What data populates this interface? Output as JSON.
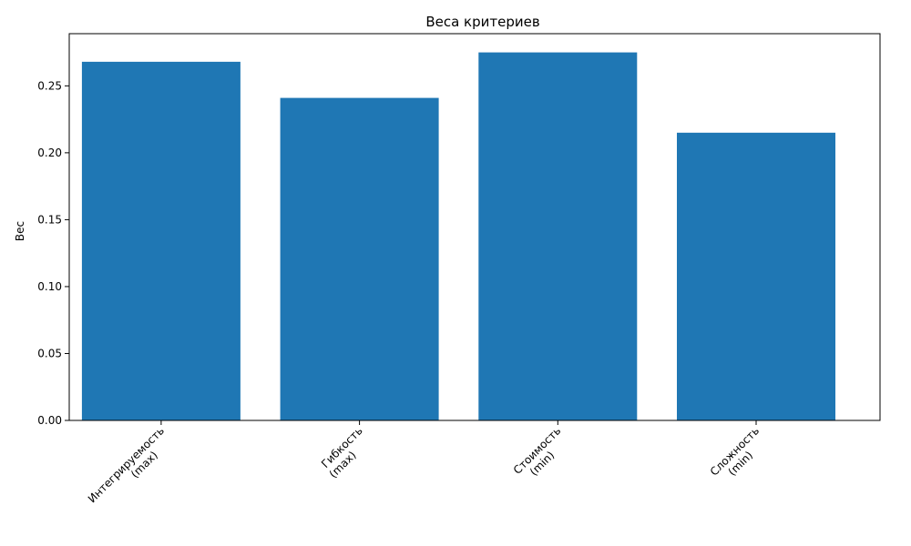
{
  "chart_data": {
    "type": "bar",
    "title": "Веса критериев",
    "xlabel": "",
    "ylabel": "Вес",
    "categories": [
      [
        "Интегрируемость",
        "(max)"
      ],
      [
        "Гибкость",
        "(max)"
      ],
      [
        "Стоимость",
        "(min)"
      ],
      [
        "Сложность",
        "(min)"
      ]
    ],
    "values": [
      0.268,
      0.241,
      0.275,
      0.215
    ],
    "ylim": [
      0,
      0.289
    ],
    "yticks": [
      "0.00",
      "0.05",
      "0.10",
      "0.15",
      "0.20",
      "0.25"
    ],
    "grid": false,
    "legend": "none",
    "bar_color": "#1f77b4"
  }
}
